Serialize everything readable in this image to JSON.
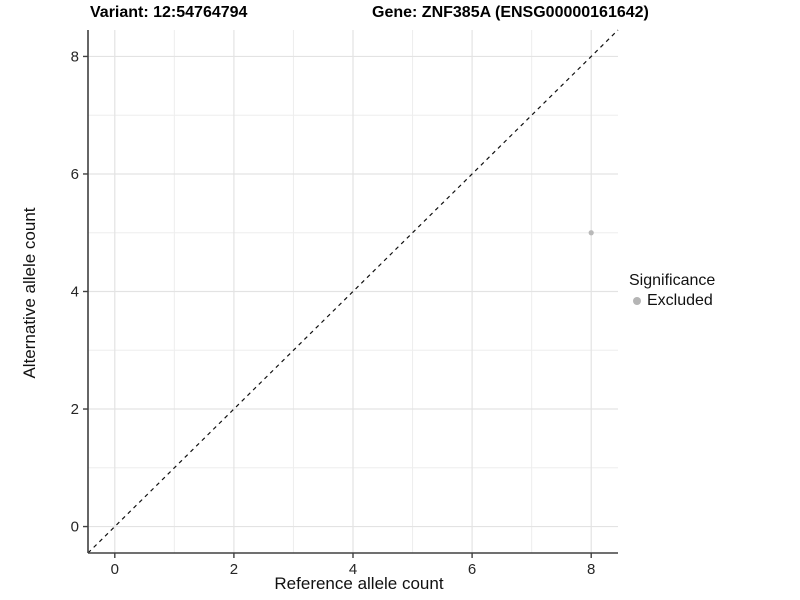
{
  "chart_data": {
    "type": "scatter",
    "title_left": "Variant: 12:54764794",
    "title_right": "Gene: ZNF385A (ENSG00000161642)",
    "xlabel": "Reference allele count",
    "ylabel": "Alternative allele count",
    "xlim": [
      -0.45,
      8.45
    ],
    "ylim": [
      -0.45,
      8.45
    ],
    "xticks": [
      0,
      2,
      4,
      6,
      8
    ],
    "yticks": [
      0,
      2,
      4,
      6,
      8
    ],
    "xticks_minor": [
      1,
      3,
      5,
      7
    ],
    "yticks_minor": [
      1,
      3,
      5,
      7
    ],
    "grid": true,
    "points": [
      {
        "x": 8,
        "y": 5,
        "significance": "Excluded"
      }
    ],
    "reference_line": {
      "style": "dashed",
      "slope": 1,
      "intercept": 0
    },
    "legend": {
      "title": "Significance",
      "position": "right",
      "items": [
        {
          "label": "Excluded",
          "color": "#b5b5b5"
        }
      ]
    },
    "colors": {
      "point": "#b9b9b9",
      "grid_major": "#e3e3e3",
      "grid_minor": "#eeeeee",
      "axis_line": "#404040",
      "tick_mark": "#404040",
      "dashed_line": "#111111",
      "background": "#ffffff"
    }
  }
}
